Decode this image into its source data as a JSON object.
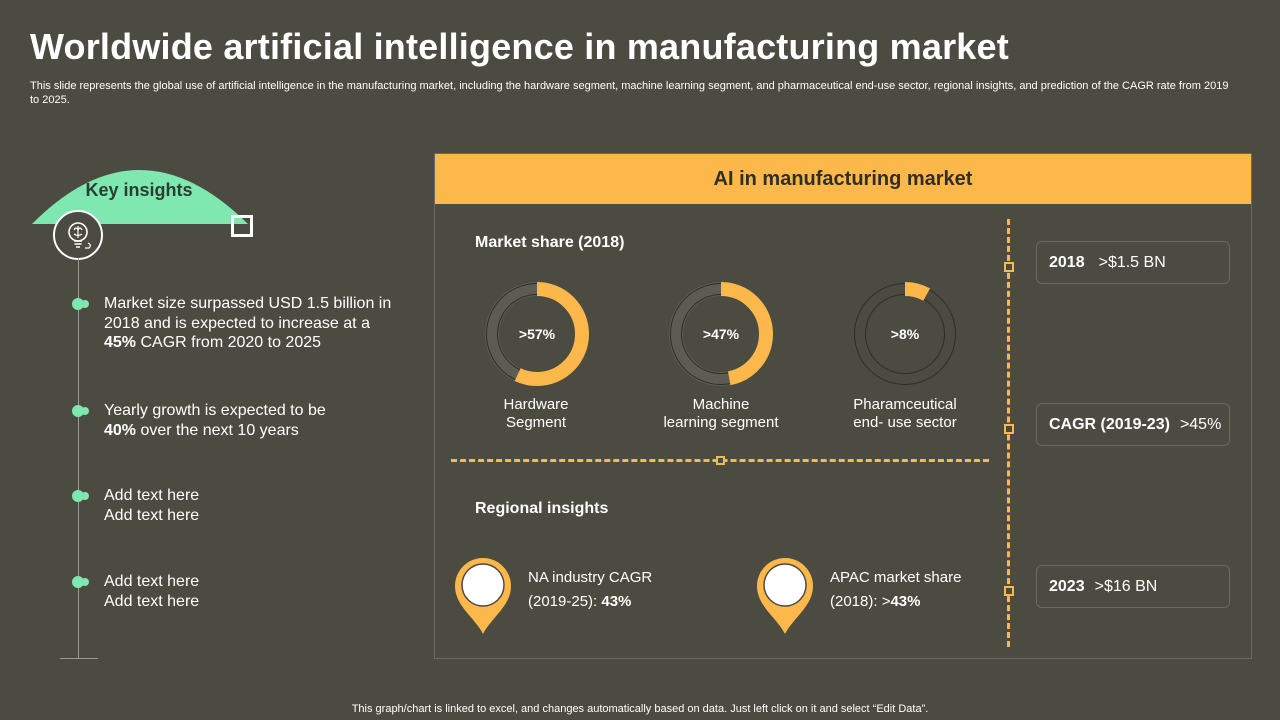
{
  "title": "Worldwide artificial intelligence in manufacturing market",
  "subtitle": "This slide represents the global use of artificial intelligence in the manufacturing market, including the hardware segment, machine learning segment, and pharmaceutical end-use sector, regional insights, and prediction of the CAGR rate from 2019 to 2025.",
  "key_insights": {
    "label": "Key insights",
    "icon": "lightbulb-brain-icon",
    "accent_color": "#7ee8b0",
    "bullets": [
      {
        "pre": "Market size surpassed USD 1.5 billion in 2018 and is expected to increase at a ",
        "bold": "45%",
        "post": " CAGR from 2020 to 2025"
      },
      {
        "pre": "Yearly growth is expected to be ",
        "bold": "40%",
        "post": " over the next 10 years"
      },
      {
        "line1": "Add text here",
        "line2": "Add text here"
      },
      {
        "line1": "Add text here",
        "line2": "Add text here"
      }
    ]
  },
  "panel": {
    "header": "AI in manufacturing market",
    "header_color": "#fcb84b",
    "market_share": {
      "label": "Market share (2018)",
      "items": [
        {
          "value_label": ">57%",
          "fraction": 0.57,
          "caption_line1": "Hardware",
          "caption_line2": "Segment"
        },
        {
          "value_label": ">47%",
          "fraction": 0.47,
          "caption_line1": "Machine",
          "caption_line2": "learning segment"
        },
        {
          "value_label": ">8%",
          "fraction": 0.08,
          "caption_line1": "Pharamceutical",
          "caption_line2": "end- use sector"
        }
      ]
    },
    "regional": {
      "label": "Regional insights",
      "items": [
        {
          "line1": "NA industry CAGR",
          "line2_pre": "(2019-25): ",
          "line2_bold": "43%"
        },
        {
          "line1": "APAC market share",
          "line2_pre": "(2018): >",
          "line2_bold": "43%"
        }
      ]
    },
    "timeline": [
      {
        "bold": "2018",
        "value": ">$1.5 BN"
      },
      {
        "bold": "CAGR (2019-23)",
        "value": ">45%"
      },
      {
        "bold": "2023",
        "value": ">$16 BN"
      }
    ]
  },
  "footer": "This graph/chart is linked to excel, and changes automatically based on data. Just left click on it and select “Edit Data”."
}
